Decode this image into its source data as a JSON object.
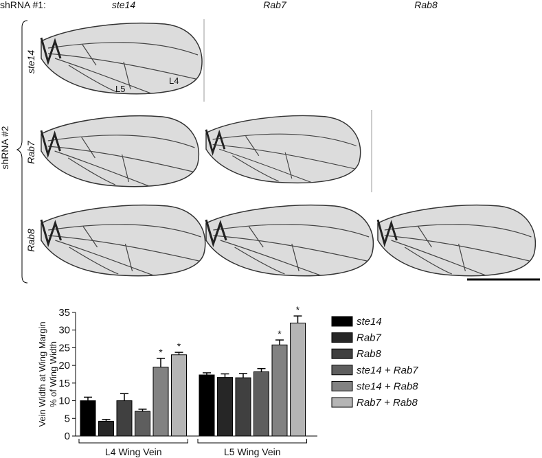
{
  "figure": {
    "column_header": {
      "label": "shRNA #1:",
      "columns": [
        "ste14",
        "Rab7",
        "Rab8"
      ]
    },
    "row_header": {
      "label": "shRNA #2",
      "rows": [
        "ste14",
        "Rab7",
        "Rab8"
      ]
    },
    "vein_labels": [
      "L5",
      "L4"
    ]
  },
  "chart_data": {
    "type": "bar",
    "y_label": [
      "Vein Width at Wing Margin",
      "% of Wing Width"
    ],
    "categories": [
      "L4 Wing Vein",
      "L5 Wing Vein"
    ],
    "ylim": [
      0,
      35
    ],
    "yticks": [
      0,
      5,
      10,
      15,
      20,
      25,
      30,
      35
    ],
    "series": [
      {
        "name": "ste14",
        "color": "#000000",
        "values": [
          10,
          17.3
        ],
        "errors": [
          1,
          0.6
        ],
        "annotations": [
          null,
          null
        ]
      },
      {
        "name": "Rab7",
        "color": "#262626",
        "values": [
          4.2,
          16.6
        ],
        "errors": [
          0.5,
          1
        ],
        "annotations": [
          null,
          null
        ]
      },
      {
        "name": "Rab8",
        "color": "#404040",
        "values": [
          10,
          16.5
        ],
        "errors": [
          2,
          1.2
        ],
        "annotations": [
          null,
          null
        ]
      },
      {
        "name": "ste14 + Rab7",
        "color": "#5e5e5e",
        "values": [
          7,
          18.2
        ],
        "errors": [
          0.6,
          0.9
        ],
        "annotations": [
          null,
          null
        ]
      },
      {
        "name": "ste14 + Rab8",
        "color": "#828282",
        "values": [
          19.5,
          25.8
        ],
        "errors": [
          2.5,
          1.4
        ],
        "annotations": [
          "*",
          "*"
        ]
      },
      {
        "name": "Rab7 + Rab8",
        "color": "#b5b5b5",
        "values": [
          23,
          32
        ],
        "errors": [
          0.7,
          2
        ],
        "annotations": [
          "*",
          "*"
        ]
      }
    ]
  }
}
